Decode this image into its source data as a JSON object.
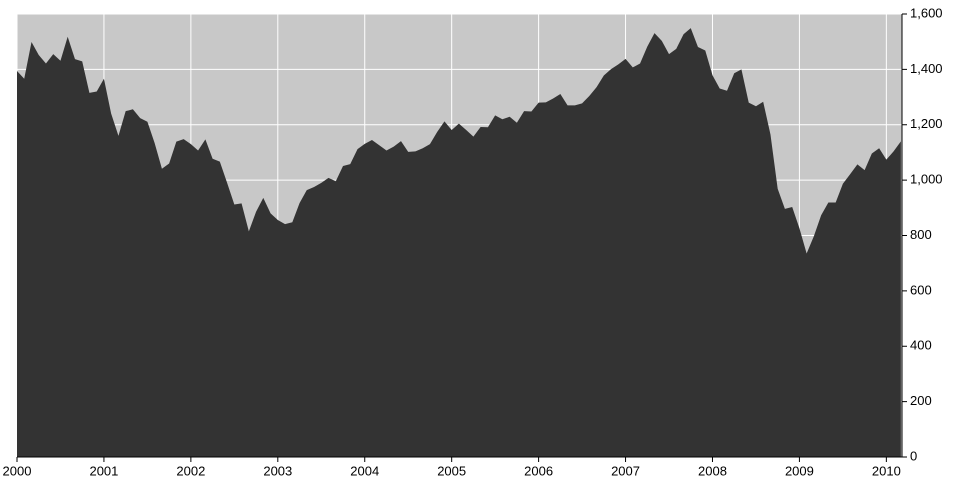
{
  "chart_data": {
    "type": "area",
    "color": "#333333",
    "background": "#c8c8c8",
    "grid": true,
    "x": [
      2000,
      2000.083,
      2000.167,
      2000.25,
      2000.333,
      2000.417,
      2000.5,
      2000.583,
      2000.667,
      2000.75,
      2000.833,
      2000.917,
      2001,
      2001.083,
      2001.167,
      2001.25,
      2001.333,
      2001.417,
      2001.5,
      2001.583,
      2001.667,
      2001.75,
      2001.833,
      2001.917,
      2002,
      2002.083,
      2002.167,
      2002.25,
      2002.333,
      2002.417,
      2002.5,
      2002.583,
      2002.667,
      2002.75,
      2002.833,
      2002.917,
      2003,
      2003.083,
      2003.167,
      2003.25,
      2003.333,
      2003.417,
      2003.5,
      2003.583,
      2003.667,
      2003.75,
      2003.833,
      2003.917,
      2004,
      2004.083,
      2004.167,
      2004.25,
      2004.333,
      2004.417,
      2004.5,
      2004.583,
      2004.667,
      2004.75,
      2004.833,
      2004.917,
      2005,
      2005.083,
      2005.167,
      2005.25,
      2005.333,
      2005.417,
      2005.5,
      2005.583,
      2005.667,
      2005.75,
      2005.833,
      2005.917,
      2006,
      2006.083,
      2006.167,
      2006.25,
      2006.333,
      2006.417,
      2006.5,
      2006.583,
      2006.667,
      2006.75,
      2006.833,
      2006.917,
      2007,
      2007.083,
      2007.167,
      2007.25,
      2007.333,
      2007.417,
      2007.5,
      2007.583,
      2007.667,
      2007.75,
      2007.833,
      2007.917,
      2008,
      2008.083,
      2008.167,
      2008.25,
      2008.333,
      2008.417,
      2008.5,
      2008.583,
      2008.667,
      2008.75,
      2008.833,
      2008.917,
      2009,
      2009.083,
      2009.167,
      2009.25,
      2009.333,
      2009.417,
      2009.5,
      2009.583,
      2009.667,
      2009.75,
      2009.833,
      2009.917,
      2010,
      2010.083,
      2010.167
    ],
    "values": [
      1394,
      1366,
      1499,
      1452,
      1421,
      1455,
      1431,
      1518,
      1437,
      1429,
      1315,
      1320,
      1366,
      1240,
      1160,
      1249,
      1256,
      1224,
      1211,
      1134,
      1041,
      1060,
      1139,
      1148,
      1130,
      1107,
      1147,
      1077,
      1067,
      990,
      912,
      916,
      815,
      886,
      936,
      880,
      856,
      841,
      848,
      917,
      964,
      975,
      990,
      1008,
      996,
      1051,
      1058,
      1112,
      1131,
      1145,
      1126,
      1107,
      1121,
      1141,
      1102,
      1104,
      1115,
      1130,
      1174,
      1212,
      1181,
      1204,
      1181,
      1157,
      1192,
      1191,
      1234,
      1220,
      1229,
      1207,
      1249,
      1248,
      1280,
      1281,
      1295,
      1311,
      1270,
      1270,
      1277,
      1304,
      1336,
      1378,
      1401,
      1418,
      1438,
      1407,
      1421,
      1482,
      1531,
      1503,
      1455,
      1474,
      1527,
      1549,
      1481,
      1468,
      1379,
      1331,
      1323,
      1386,
      1400,
      1280,
      1267,
      1283,
      1165,
      969,
      896,
      903,
      826,
      735,
      798,
      873,
      919,
      919,
      987,
      1021,
      1057,
      1036,
      1096,
      1115,
      1074,
      1104,
      1140
    ],
    "xlim": [
      2000,
      2010.18
    ],
    "xticks": [
      2000,
      2001,
      2002,
      2003,
      2004,
      2005,
      2006,
      2007,
      2008,
      2009,
      2010
    ],
    "ylim": [
      0,
      1600
    ],
    "yticks": [
      0,
      200,
      400,
      600,
      800,
      {
        "value": 1000,
        "label": "1,000"
      },
      {
        "value": 1200,
        "label": "1,200"
      },
      {
        "value": 1400,
        "label": "1,400"
      },
      {
        "value": 1600,
        "label": "1,600"
      }
    ]
  }
}
